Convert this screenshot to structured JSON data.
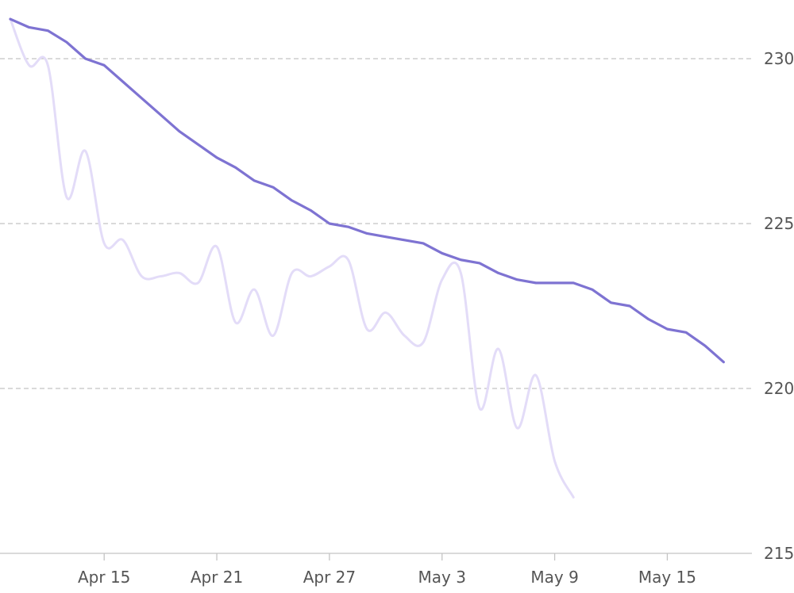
{
  "chart_data": {
    "type": "line",
    "title": "",
    "xlabel": "",
    "ylabel": "",
    "x_range": [
      "2024-04-10",
      "2024-05-19"
    ],
    "ylim": [
      215,
      231.2
    ],
    "y_axis_position": "right",
    "grid": "horizontal dashed",
    "x_ticks": [
      {
        "date": "2024-04-15",
        "label": "Apr 15"
      },
      {
        "date": "2024-04-21",
        "label": "Apr 21"
      },
      {
        "date": "2024-04-27",
        "label": "Apr 27"
      },
      {
        "date": "2024-05-03",
        "label": "May 3"
      },
      {
        "date": "2024-05-09",
        "label": "May 9"
      },
      {
        "date": "2024-05-15",
        "label": "May 15"
      }
    ],
    "y_ticks": [
      230,
      225,
      220,
      215
    ],
    "series": [
      {
        "color": "#7e73d2",
        "smooth": false,
        "points": [
          [
            "2024-04-10",
            231.2
          ],
          [
            "2024-04-11",
            230.95
          ],
          [
            "2024-04-12",
            230.85
          ],
          [
            "2024-04-13",
            230.5
          ],
          [
            "2024-04-14",
            230.0
          ],
          [
            "2024-04-15",
            229.8
          ],
          [
            "2024-04-16",
            229.3
          ],
          [
            "2024-04-17",
            228.8
          ],
          [
            "2024-04-18",
            228.3
          ],
          [
            "2024-04-19",
            227.8
          ],
          [
            "2024-04-20",
            227.4
          ],
          [
            "2024-04-21",
            227.0
          ],
          [
            "2024-04-22",
            226.7
          ],
          [
            "2024-04-23",
            226.3
          ],
          [
            "2024-04-24",
            226.1
          ],
          [
            "2024-04-25",
            225.7
          ],
          [
            "2024-04-26",
            225.4
          ],
          [
            "2024-04-27",
            225.0
          ],
          [
            "2024-04-28",
            224.9
          ],
          [
            "2024-04-29",
            224.7
          ],
          [
            "2024-04-30",
            224.6
          ],
          [
            "2024-05-01",
            224.5
          ],
          [
            "2024-05-02",
            224.4
          ],
          [
            "2024-05-03",
            224.1
          ],
          [
            "2024-05-04",
            223.9
          ],
          [
            "2024-05-05",
            223.8
          ],
          [
            "2024-05-06",
            223.5
          ],
          [
            "2024-05-07",
            223.3
          ],
          [
            "2024-05-08",
            223.2
          ],
          [
            "2024-05-09",
            223.2
          ],
          [
            "2024-05-10",
            223.2
          ],
          [
            "2024-05-11",
            223.0
          ],
          [
            "2024-05-12",
            222.6
          ],
          [
            "2024-05-13",
            222.5
          ],
          [
            "2024-05-14",
            222.1
          ],
          [
            "2024-05-15",
            221.8
          ],
          [
            "2024-05-16",
            221.7
          ],
          [
            "2024-05-17",
            221.3
          ],
          [
            "2024-05-18",
            220.8
          ]
        ]
      },
      {
        "color": "#e3dcf8",
        "smooth": true,
        "points": [
          [
            "2024-04-10",
            231.2
          ],
          [
            "2024-04-11",
            229.8
          ],
          [
            "2024-04-12",
            229.8
          ],
          [
            "2024-04-13",
            225.8
          ],
          [
            "2024-04-14",
            227.2
          ],
          [
            "2024-04-15",
            224.4
          ],
          [
            "2024-04-16",
            224.5
          ],
          [
            "2024-04-17",
            223.4
          ],
          [
            "2024-04-18",
            223.4
          ],
          [
            "2024-04-19",
            223.5
          ],
          [
            "2024-04-20",
            223.2
          ],
          [
            "2024-04-21",
            224.3
          ],
          [
            "2024-04-22",
            222.0
          ],
          [
            "2024-04-23",
            223.0
          ],
          [
            "2024-04-24",
            221.6
          ],
          [
            "2024-04-25",
            223.5
          ],
          [
            "2024-04-26",
            223.4
          ],
          [
            "2024-04-27",
            223.7
          ],
          [
            "2024-04-28",
            223.9
          ],
          [
            "2024-04-29",
            221.8
          ],
          [
            "2024-04-30",
            222.3
          ],
          [
            "2024-05-01",
            221.6
          ],
          [
            "2024-05-02",
            221.4
          ],
          [
            "2024-05-03",
            223.3
          ],
          [
            "2024-05-04",
            223.5
          ],
          [
            "2024-05-05",
            219.4
          ],
          [
            "2024-05-06",
            221.2
          ],
          [
            "2024-05-07",
            218.8
          ],
          [
            "2024-05-08",
            220.4
          ],
          [
            "2024-05-09",
            217.8
          ],
          [
            "2024-05-10",
            216.7
          ]
        ]
      }
    ]
  }
}
